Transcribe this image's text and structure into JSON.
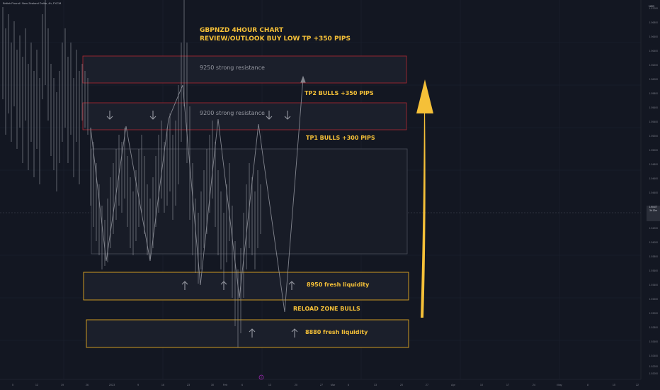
{
  "header": {
    "symbol_line": "British Pound / New Zealand Dollar, 4h, FXCM",
    "currency": "NZD"
  },
  "annotations": {
    "title_line1": "GBPNZD 4HOUR CHART",
    "title_line2": "REVIEW/OUTLOOK BUY LOW TP +350 PIPS",
    "zone_9250": "9250 strong resistance",
    "zone_9200": "9200 strong resistance",
    "tp2": "TP2 BULLS +350 PIPS",
    "tp1": "TP1 BULLS +300 PIPS",
    "liq_8950": "8950 fresh liquidity",
    "reload": "RELOAD ZONE BULLS",
    "liq_8880": "8880 fresh liquidity"
  },
  "price_scale": [
    "1.97000",
    "1.96800",
    "1.96600",
    "1.96400",
    "1.96200",
    "1.96000",
    "1.95800",
    "1.95600",
    "1.95400",
    "1.95200",
    "1.95000",
    "1.94800",
    "1.94600",
    "1.94400",
    "1.94200",
    "1.94000",
    "1.93800",
    "1.93600",
    "1.93400",
    "1.93200",
    "1.93000",
    "1.92800",
    "1.92600",
    "1.92400",
    "1.92200",
    "1.92000",
    "1.91800"
  ],
  "last_price": {
    "line1": "1.90477",
    "line2": "3h 12m"
  },
  "time_axis": [
    "5",
    "12",
    "19",
    "26",
    "2023",
    "9",
    "16",
    "23",
    "30",
    "Feb",
    "6",
    "13",
    "20",
    "27",
    "Mar",
    "6",
    "13",
    "20",
    "27",
    "Apr",
    "10",
    "17",
    "24",
    "May",
    "8",
    "15",
    "22"
  ],
  "colors": {
    "background": "#131722",
    "accent_yellow": "#f5c038",
    "resistance_border": "#b22833",
    "support_border": "#e0a722",
    "candles": "#9598a1"
  }
}
